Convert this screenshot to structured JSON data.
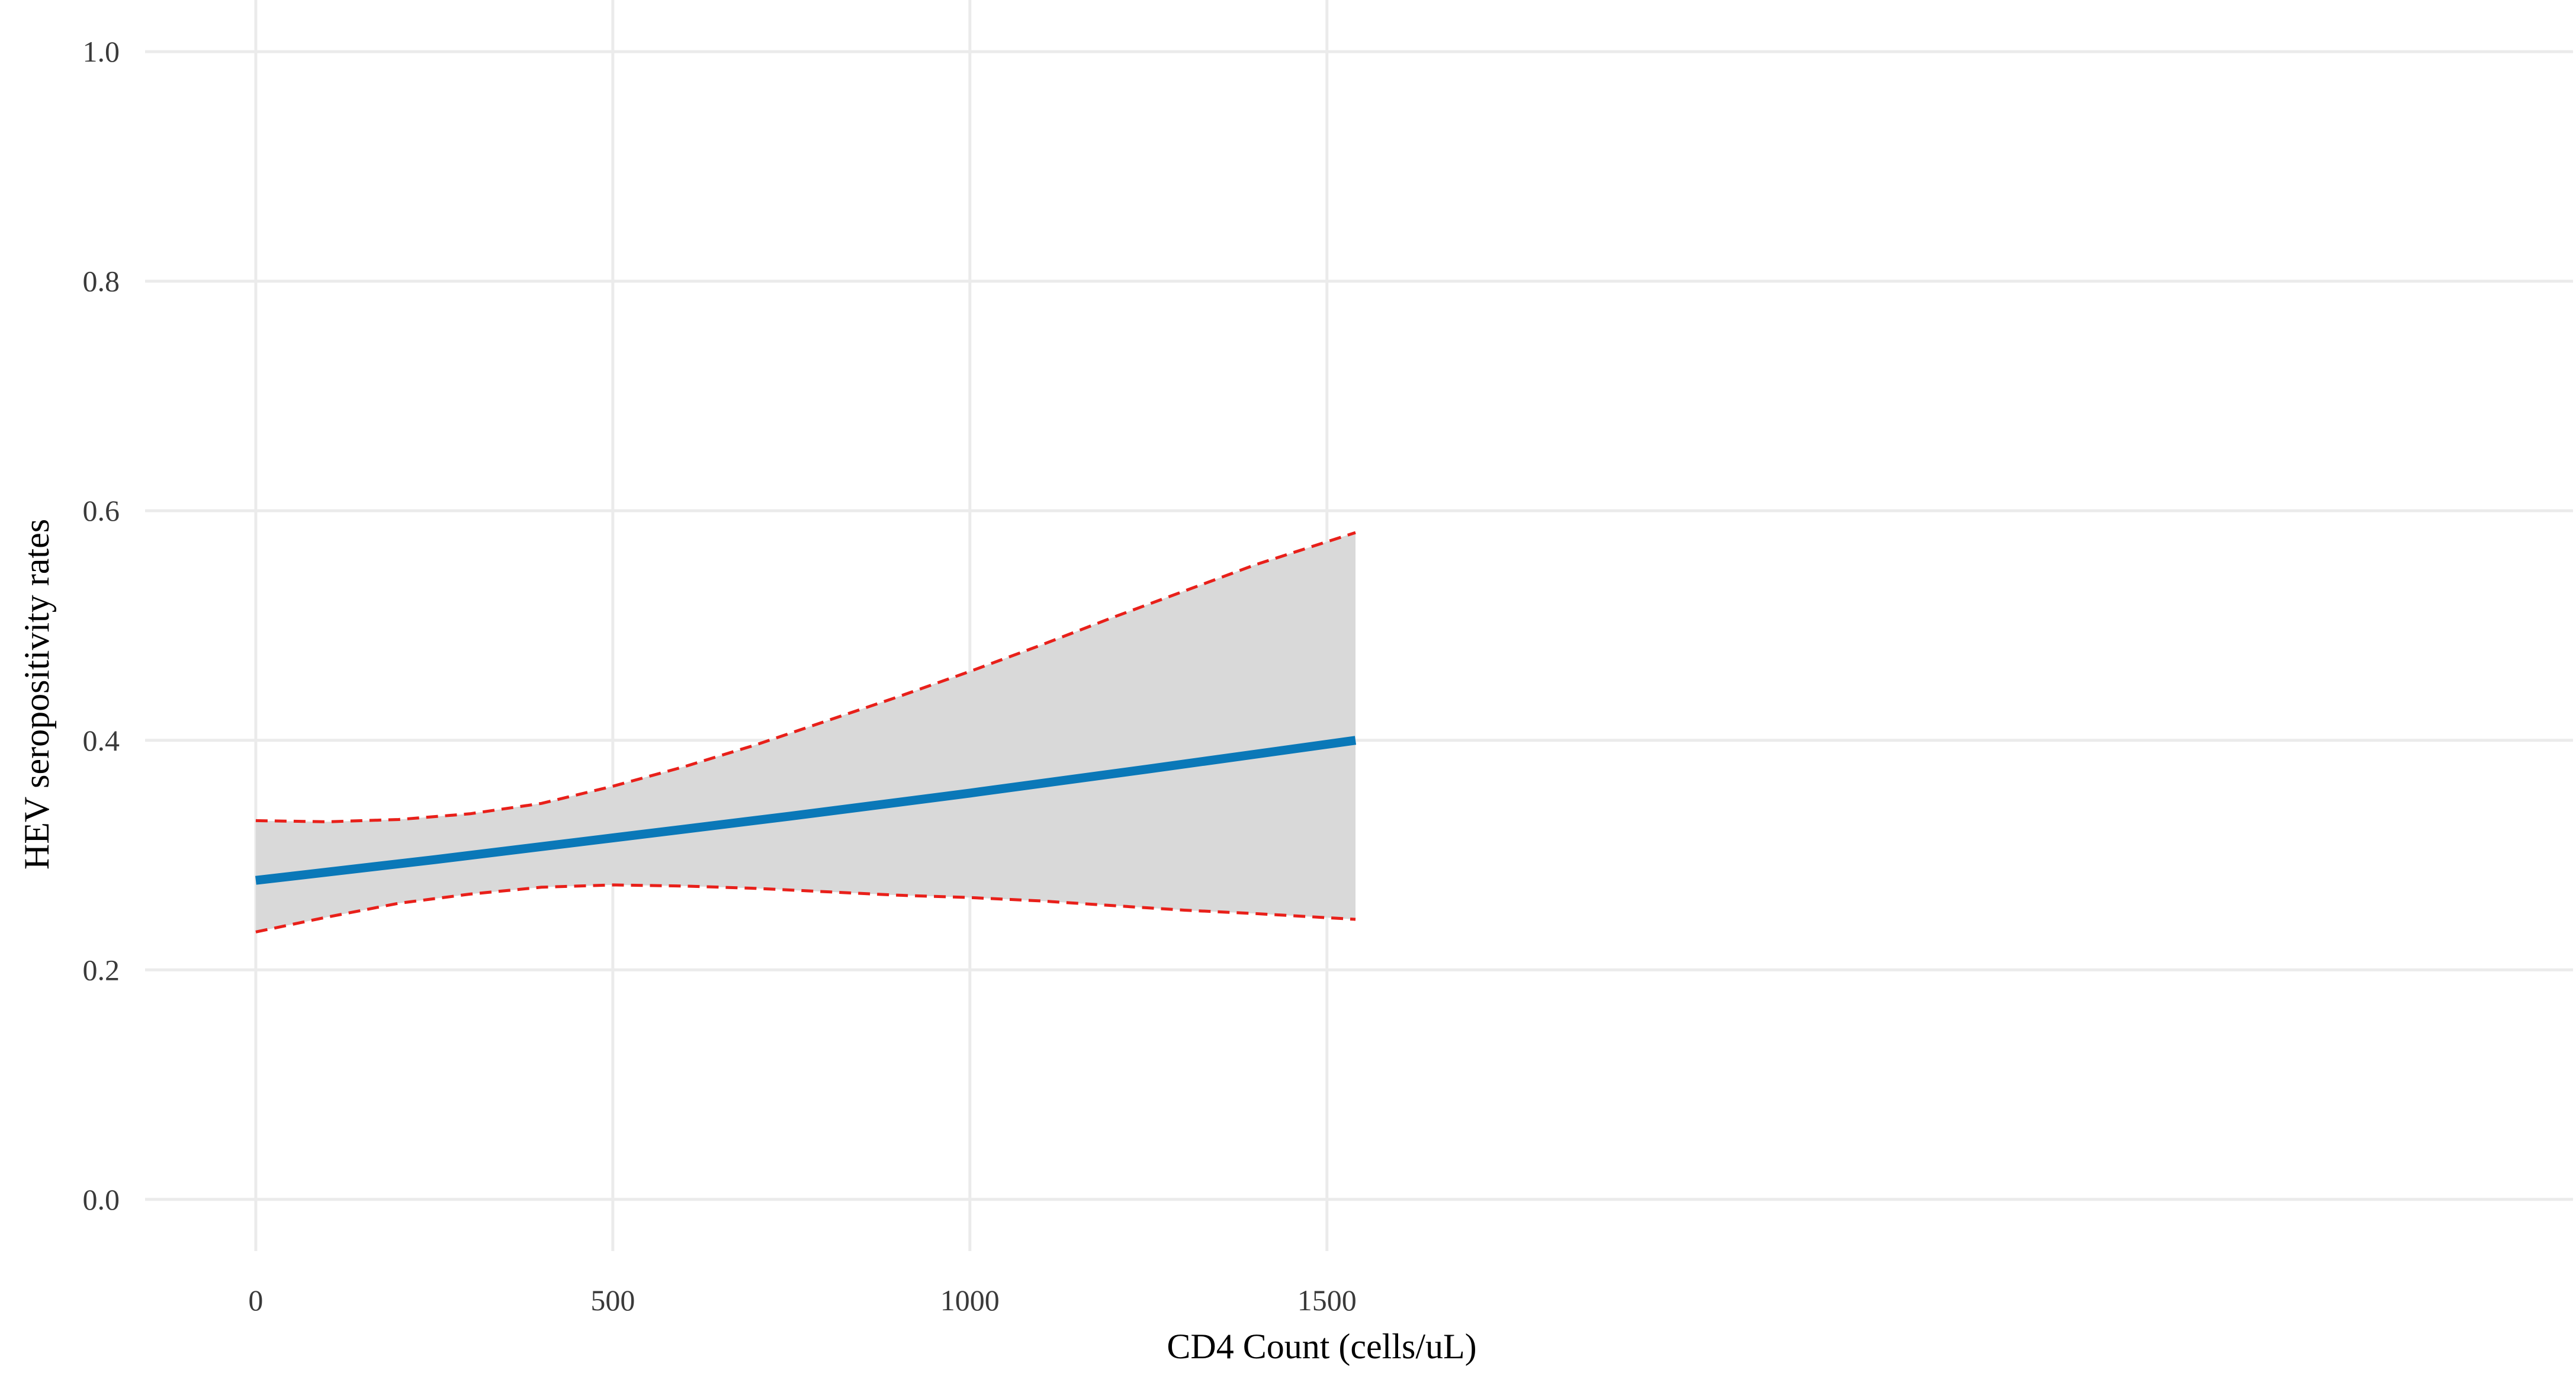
{
  "chart_data": {
    "type": "line",
    "title": "",
    "xlabel": "CD4 Count (cells/uL)",
    "ylabel": "HEV seropositivity rates",
    "xlim": [
      -155,
      3245
    ],
    "ylim": [
      -0.045,
      1.045
    ],
    "x_ticks": [
      0,
      500,
      1000,
      1500
    ],
    "y_ticks": [
      0.0,
      0.2,
      0.4,
      0.6,
      0.8,
      1.0
    ],
    "y_tick_labels": [
      "0.0",
      "0.2",
      "0.4",
      "0.6",
      "0.8",
      "1.0"
    ],
    "grid": true,
    "legend": "none",
    "colors": {
      "fit_line": "#0a78b8",
      "ci_line": "#e8201a",
      "ci_band": "#d9d9d9",
      "grid": "#ebebeb"
    },
    "series": [
      {
        "role": "fit",
        "x": [
          0,
          250,
          500,
          750,
          1000,
          1250,
          1540
        ],
        "values": [
          0.278,
          0.296,
          0.315,
          0.334,
          0.354,
          0.375,
          0.4
        ]
      },
      {
        "role": "ci_upper",
        "x": [
          0,
          100,
          200,
          300,
          400,
          500,
          600,
          700,
          800,
          900,
          1000,
          1100,
          1200,
          1300,
          1400,
          1540
        ],
        "values": [
          0.33,
          0.329,
          0.331,
          0.336,
          0.345,
          0.36,
          0.377,
          0.396,
          0.417,
          0.438,
          0.46,
          0.483,
          0.507,
          0.53,
          0.553,
          0.581
        ]
      },
      {
        "role": "ci_lower",
        "x": [
          0,
          100,
          200,
          300,
          400,
          500,
          600,
          700,
          800,
          900,
          1000,
          1100,
          1200,
          1300,
          1400,
          1540
        ],
        "values": [
          0.233,
          0.246,
          0.258,
          0.266,
          0.272,
          0.274,
          0.273,
          0.271,
          0.268,
          0.265,
          0.263,
          0.26,
          0.256,
          0.252,
          0.249,
          0.244
        ]
      }
    ]
  }
}
